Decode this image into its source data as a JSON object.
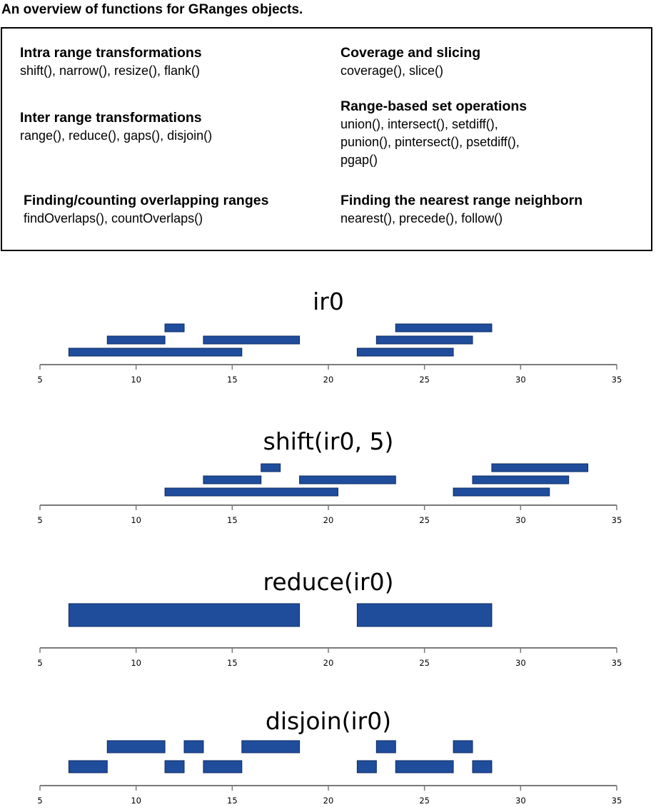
{
  "title": "An overview of  functions for GRanges objects.",
  "groups": [
    {
      "heading": "Intra range transformations",
      "functions": [
        "shift(), narrow(), resize(), flank()"
      ]
    },
    {
      "heading": "Inter range transformations",
      "functions": [
        "range(), reduce(), gaps(), disjoin()"
      ]
    },
    {
      "heading": "Finding/counting overlapping ranges",
      "functions": [
        "findOverlaps(), countOverlaps()"
      ]
    },
    {
      "heading": "Coverage and slicing",
      "functions": [
        "coverage(), slice()"
      ]
    },
    {
      "heading": "Range-based set operations",
      "functions": [
        "union(), intersect(), setdiff(),",
        "punion(), pintersect(), psetdiff(),",
        "pgap()"
      ]
    },
    {
      "heading": "Finding the nearest range neighborn",
      "functions": [
        "nearest(), precede(), follow()"
      ]
    }
  ],
  "colors": {
    "bar": "#1f4d9c",
    "bar_border": "#0e2a63",
    "axis": "#7a7a7a"
  },
  "chart_data": [
    {
      "type": "range-plot",
      "title": "ir0",
      "xlim": [
        5,
        35
      ],
      "ticks": [
        5,
        10,
        15,
        20,
        25,
        30,
        35
      ],
      "ranges": [
        {
          "start": 7,
          "end": 15,
          "row": 0
        },
        {
          "start": 9,
          "end": 11,
          "row": 1
        },
        {
          "start": 12,
          "end": 12,
          "row": 2
        },
        {
          "start": 14,
          "end": 18,
          "row": 1
        },
        {
          "start": 22,
          "end": 26,
          "row": 0
        },
        {
          "start": 23,
          "end": 27,
          "row": 1
        },
        {
          "start": 24,
          "end": 28,
          "row": 2
        }
      ]
    },
    {
      "type": "range-plot",
      "title": "shift(ir0, 5)",
      "xlim": [
        5,
        35
      ],
      "ticks": [
        5,
        10,
        15,
        20,
        25,
        30,
        35
      ],
      "ranges": [
        {
          "start": 12,
          "end": 20,
          "row": 0
        },
        {
          "start": 14,
          "end": 16,
          "row": 1
        },
        {
          "start": 17,
          "end": 17,
          "row": 2
        },
        {
          "start": 19,
          "end": 23,
          "row": 1
        },
        {
          "start": 27,
          "end": 31,
          "row": 0
        },
        {
          "start": 28,
          "end": 32,
          "row": 1
        },
        {
          "start": 29,
          "end": 33,
          "row": 2
        }
      ]
    },
    {
      "type": "range-plot",
      "title": "reduce(ir0)",
      "xlim": [
        5,
        35
      ],
      "ticks": [
        5,
        10,
        15,
        20,
        25,
        30,
        35
      ],
      "ranges": [
        {
          "start": 7,
          "end": 18,
          "row": 0
        },
        {
          "start": 22,
          "end": 28,
          "row": 0
        }
      ]
    },
    {
      "type": "range-plot",
      "title": "disjoin(ir0)",
      "xlim": [
        5,
        35
      ],
      "ticks": [
        5,
        10,
        15,
        20,
        25,
        30,
        35
      ],
      "ranges": [
        {
          "start": 7,
          "end": 8,
          "row": 0
        },
        {
          "start": 9,
          "end": 11,
          "row": 1
        },
        {
          "start": 12,
          "end": 12,
          "row": 0
        },
        {
          "start": 13,
          "end": 13,
          "row": 1
        },
        {
          "start": 14,
          "end": 15,
          "row": 0
        },
        {
          "start": 16,
          "end": 18,
          "row": 1
        },
        {
          "start": 22,
          "end": 22,
          "row": 0
        },
        {
          "start": 23,
          "end": 23,
          "row": 1
        },
        {
          "start": 24,
          "end": 26,
          "row": 0
        },
        {
          "start": 27,
          "end": 27,
          "row": 1
        },
        {
          "start": 28,
          "end": 28,
          "row": 0
        }
      ]
    }
  ]
}
